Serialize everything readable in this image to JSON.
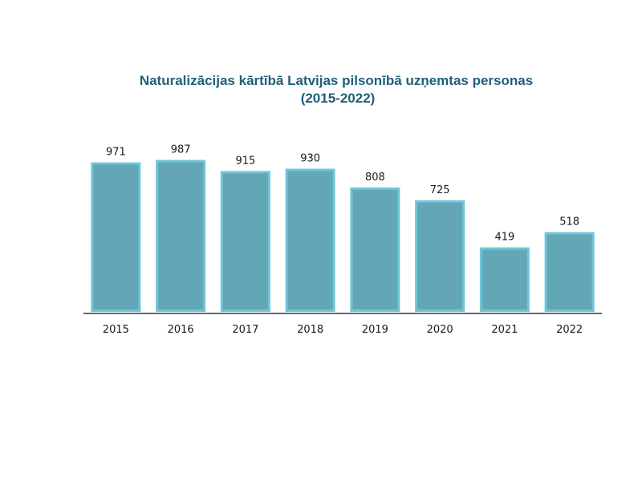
{
  "chart_data": {
    "type": "bar",
    "title": "Naturalizācijas kārtībā Latvijas pilsonībā uzņemtas personas",
    "subtitle": "(2015-2022)",
    "categories": [
      "2015",
      "2016",
      "2017",
      "2018",
      "2019",
      "2020",
      "2021",
      "2022"
    ],
    "values": [
      971,
      987,
      915,
      930,
      808,
      725,
      419,
      518
    ],
    "data_labels": [
      "971",
      "987",
      "915",
      "930",
      "808",
      "725",
      "419",
      "518"
    ],
    "xlabel": "",
    "ylabel": "",
    "ylim": [
      0,
      1000
    ],
    "grid": false,
    "legend": "none",
    "colors": {
      "bar_fill": "#63a6b6",
      "bar_border": "#6ec6da",
      "axis": "#1f3a5a",
      "title": "#1f5f78"
    }
  }
}
